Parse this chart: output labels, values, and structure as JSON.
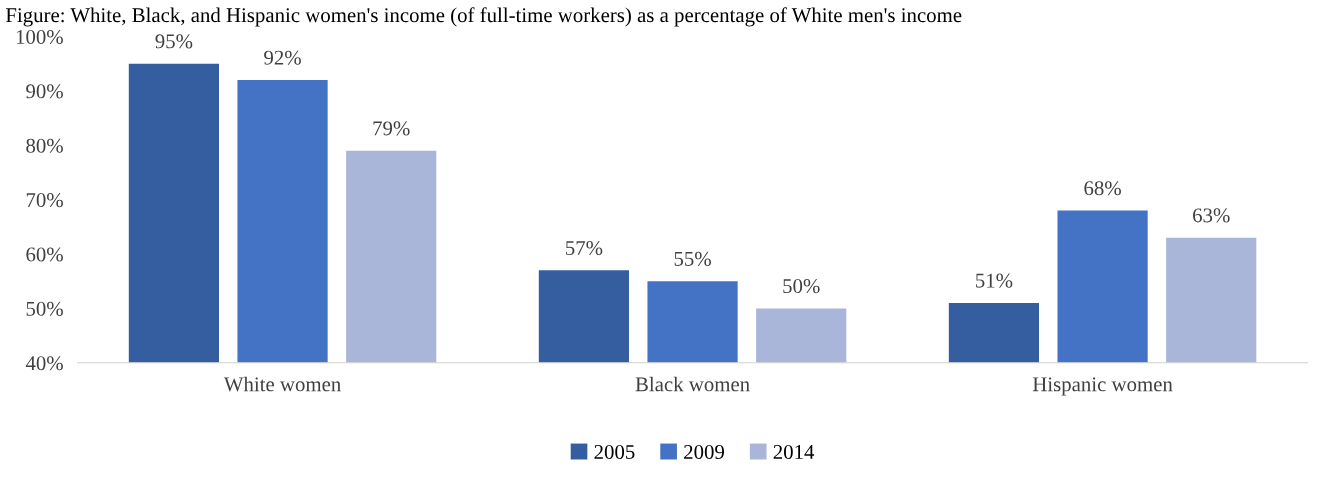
{
  "chart_data": {
    "type": "bar",
    "title": "Figure: White, Black, and Hispanic women's income (of full-time workers) as a percentage of White men's income",
    "categories": [
      "White women",
      "Black women",
      "Hispanic women"
    ],
    "series": [
      {
        "name": "2005",
        "color": "#355ea0",
        "values": [
          95,
          57,
          51
        ],
        "value_labels": [
          "95%",
          "57%",
          "51%"
        ]
      },
      {
        "name": "2009",
        "color": "#4472c4",
        "values": [
          92,
          55,
          68
        ],
        "value_labels": [
          "92%",
          "55%",
          "68%"
        ]
      },
      {
        "name": "2014",
        "color": "#a9b6da",
        "values": [
          79,
          50,
          63
        ],
        "value_labels": [
          "79%",
          "50%",
          "63%"
        ]
      }
    ],
    "ylim": [
      40,
      100
    ],
    "yticks": [
      {
        "value": 40,
        "label": "40%"
      },
      {
        "value": 50,
        "label": "50%"
      },
      {
        "value": 60,
        "label": "60%"
      },
      {
        "value": 70,
        "label": "70%"
      },
      {
        "value": 80,
        "label": "80%"
      },
      {
        "value": 90,
        "label": "90%"
      },
      {
        "value": 100,
        "label": "100%"
      }
    ],
    "grid": false,
    "legend": "bottom"
  }
}
